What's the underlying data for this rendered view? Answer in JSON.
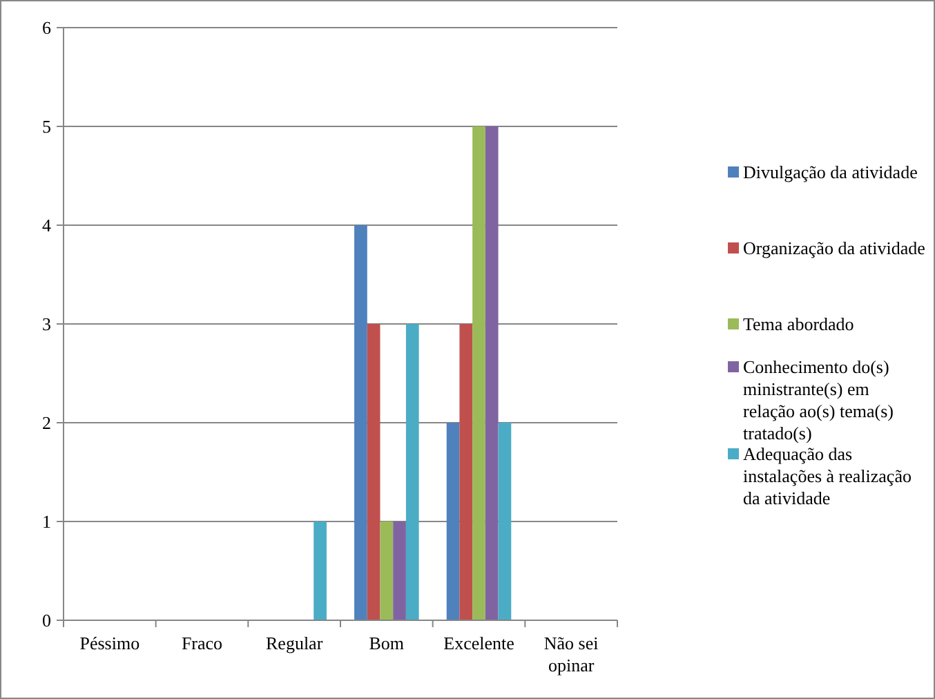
{
  "chart_data": {
    "type": "bar",
    "categories": [
      "Péssimo",
      "Fraco",
      "Regular",
      "Bom",
      "Excelente",
      "Não sei opinar"
    ],
    "series": [
      {
        "name": "Divulgação da atividade",
        "color": "#4f81bd",
        "values": [
          0,
          0,
          0,
          4,
          2,
          0
        ]
      },
      {
        "name": "Organização da atividade",
        "color": "#c0504d",
        "values": [
          0,
          0,
          0,
          3,
          3,
          0
        ]
      },
      {
        "name": "Tema abordado",
        "color": "#9bbb59",
        "values": [
          0,
          0,
          0,
          1,
          5,
          0
        ]
      },
      {
        "name": "Conhecimento do(s) ministrante(s) em relação ao(s) tema(s) tratado(s)",
        "color": "#8064a2",
        "values": [
          0,
          0,
          0,
          1,
          5,
          0
        ]
      },
      {
        "name": "Adequação das instalações à realização da atividade",
        "color": "#4bacc6",
        "values": [
          0,
          0,
          1,
          3,
          2,
          0
        ]
      }
    ],
    "ylim": [
      0,
      6
    ],
    "yticks": [
      0,
      1,
      2,
      3,
      4,
      5,
      6
    ],
    "grid": "y",
    "legend": "right"
  }
}
